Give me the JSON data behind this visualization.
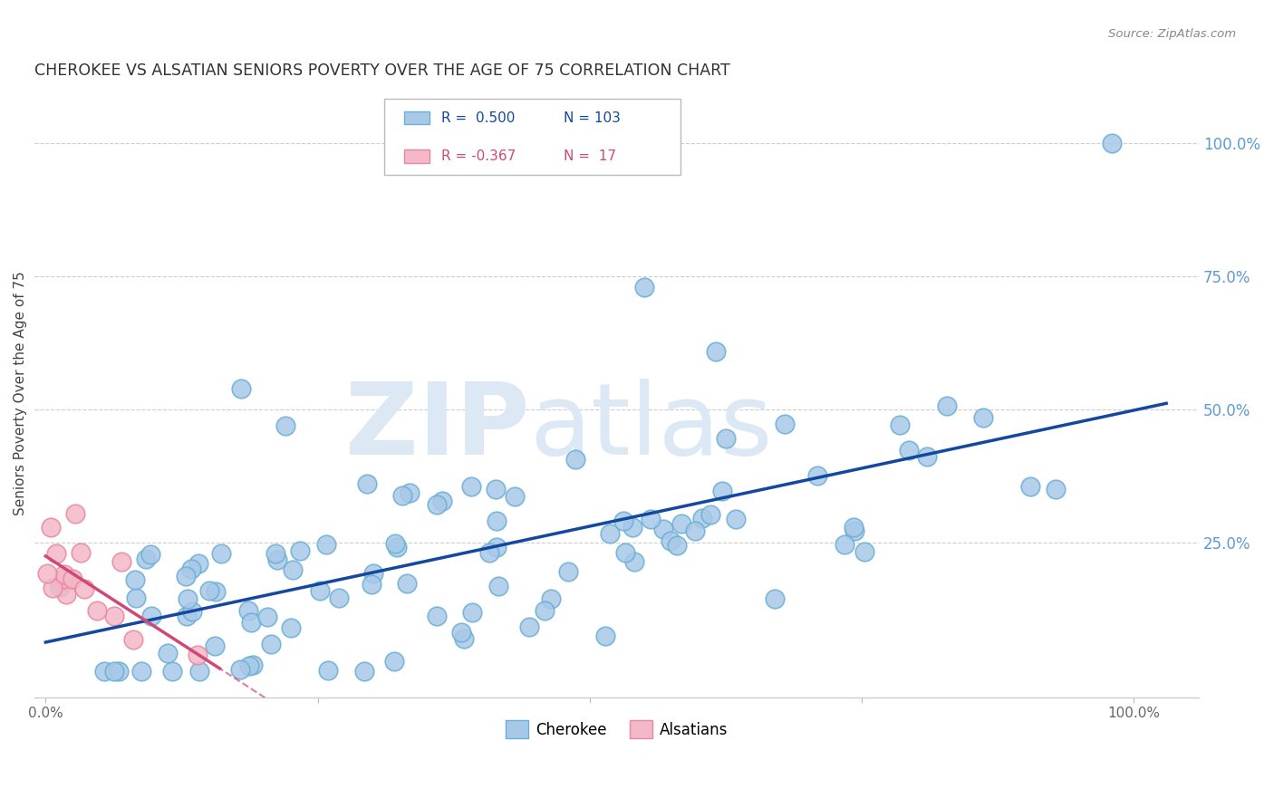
{
  "title": "CHEROKEE VS ALSATIAN SENIORS POVERTY OVER THE AGE OF 75 CORRELATION CHART",
  "source": "Source: ZipAtlas.com",
  "ylabel": "Seniors Poverty Over the Age of 75",
  "cherokee_R": 0.5,
  "cherokee_N": 103,
  "alsatian_R": -0.367,
  "alsatian_N": 17,
  "cherokee_fill": "#a8c8e8",
  "cherokee_edge": "#6aafd4",
  "alsatian_fill": "#f4b8c8",
  "alsatian_edge": "#e888a0",
  "trendline_cherokee": "#1448a0",
  "trendline_alsatian": "#d04878",
  "bg_color": "#ffffff",
  "grid_color": "#c8c8c8",
  "watermark_color": "#dce8f4",
  "right_tick_color": "#5b9bd5",
  "title_color": "#333333",
  "source_color": "#888888"
}
